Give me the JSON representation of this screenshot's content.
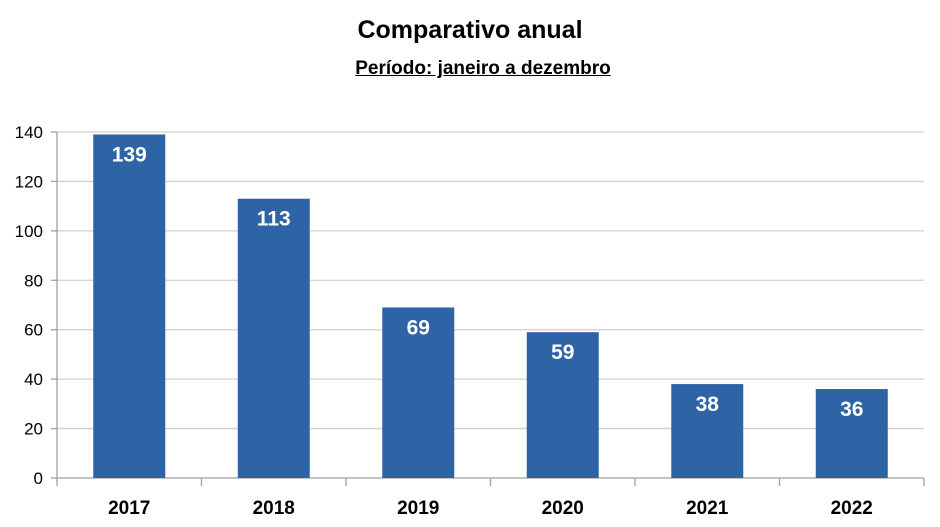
{
  "chart_data": {
    "type": "bar",
    "title": "Comparativo anual",
    "subtitle": "Período: janeiro a dezembro",
    "categories": [
      "2017",
      "2018",
      "2019",
      "2020",
      "2021",
      "2022"
    ],
    "values": [
      139,
      113,
      69,
      59,
      38,
      36
    ],
    "xlabel": "",
    "ylabel": "",
    "ylim": [
      0,
      140
    ],
    "yticks": [
      0,
      20,
      40,
      60,
      80,
      100,
      120,
      140
    ],
    "grid": true,
    "legend": "none",
    "bar_color": "#2e64a5",
    "grid_color": "#d0d0d0"
  }
}
